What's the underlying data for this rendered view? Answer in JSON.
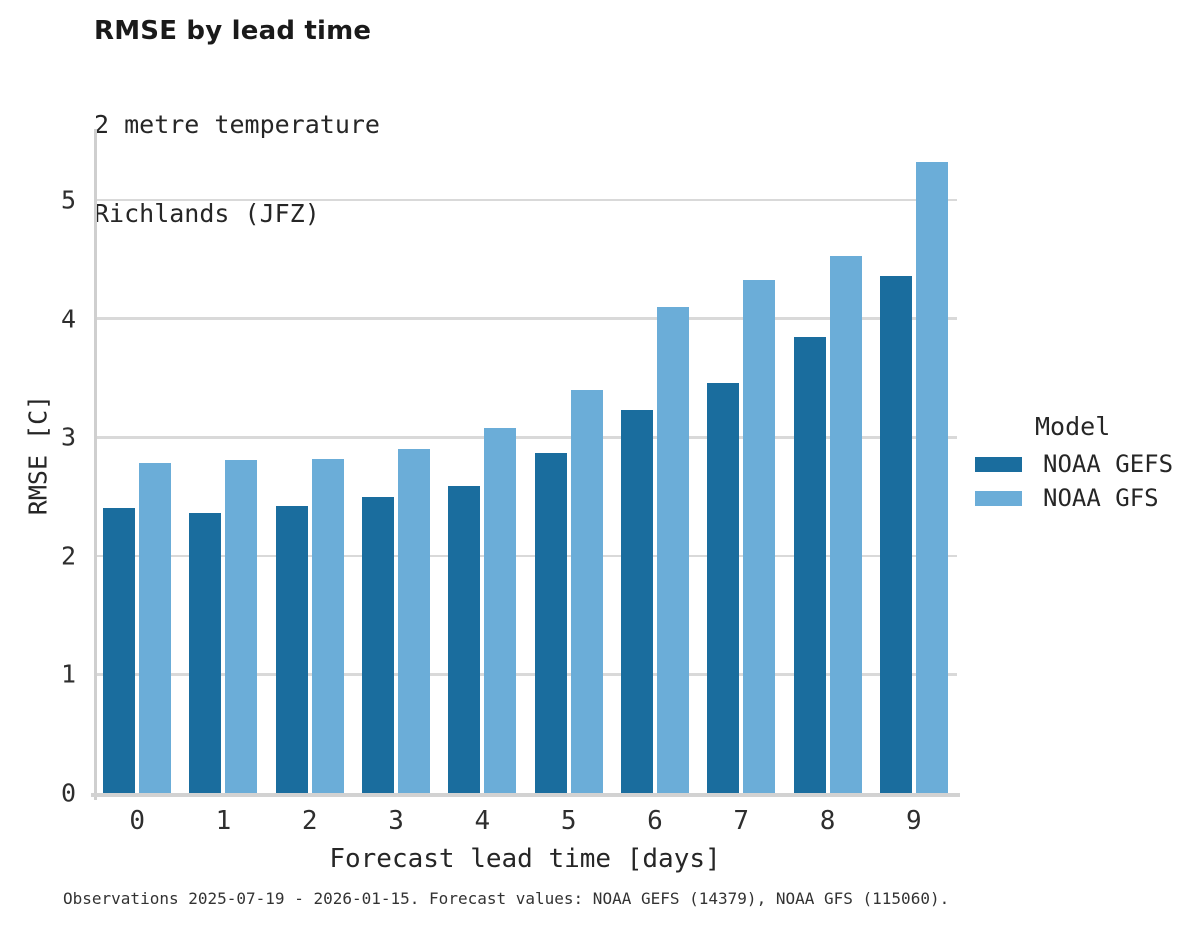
{
  "header": {
    "title": "RMSE by lead time",
    "subtitle_line1": "2 metre temperature",
    "subtitle_line2": "Richlands (JFZ)"
  },
  "chart_data": {
    "type": "bar",
    "title": "RMSE by lead time",
    "subtitle": [
      "2 metre temperature",
      "Richlands (JFZ)"
    ],
    "categories": [
      "0",
      "1",
      "2",
      "3",
      "4",
      "5",
      "6",
      "7",
      "8",
      "9"
    ],
    "series": [
      {
        "name": "NOAA GEFS",
        "color": "#1a6d9e",
        "values": [
          2.4,
          2.36,
          2.42,
          2.5,
          2.59,
          2.87,
          3.23,
          3.46,
          3.85,
          4.36
        ]
      },
      {
        "name": "NOAA GFS",
        "color": "#6badd8",
        "values": [
          2.78,
          2.81,
          2.82,
          2.9,
          3.08,
          3.4,
          4.1,
          4.33,
          4.53,
          5.32
        ]
      }
    ],
    "xlabel": "Forecast lead time [days]",
    "ylabel": "RMSE [C]",
    "ylim": [
      0,
      5.6
    ],
    "yticks": [
      0,
      1,
      2,
      3,
      4,
      5
    ],
    "grid": true,
    "legend_position": "right"
  },
  "legend": {
    "title": "Model",
    "items": [
      {
        "label": "NOAA GEFS",
        "color": "#1a6d9e"
      },
      {
        "label": "NOAA GFS",
        "color": "#6badd8"
      }
    ]
  },
  "footer": {
    "caption": "Observations 2025-07-19 - 2026-01-15. Forecast values: NOAA GEFS (14379), NOAA GFS (115060)."
  },
  "colors": {
    "series_dark": "#1a6d9e",
    "series_light": "#6badd8",
    "gridline": "#d9d9d9",
    "axis_line": "#cfcfcf",
    "title_text": "#1a1a1a",
    "body_text": "#262626"
  }
}
